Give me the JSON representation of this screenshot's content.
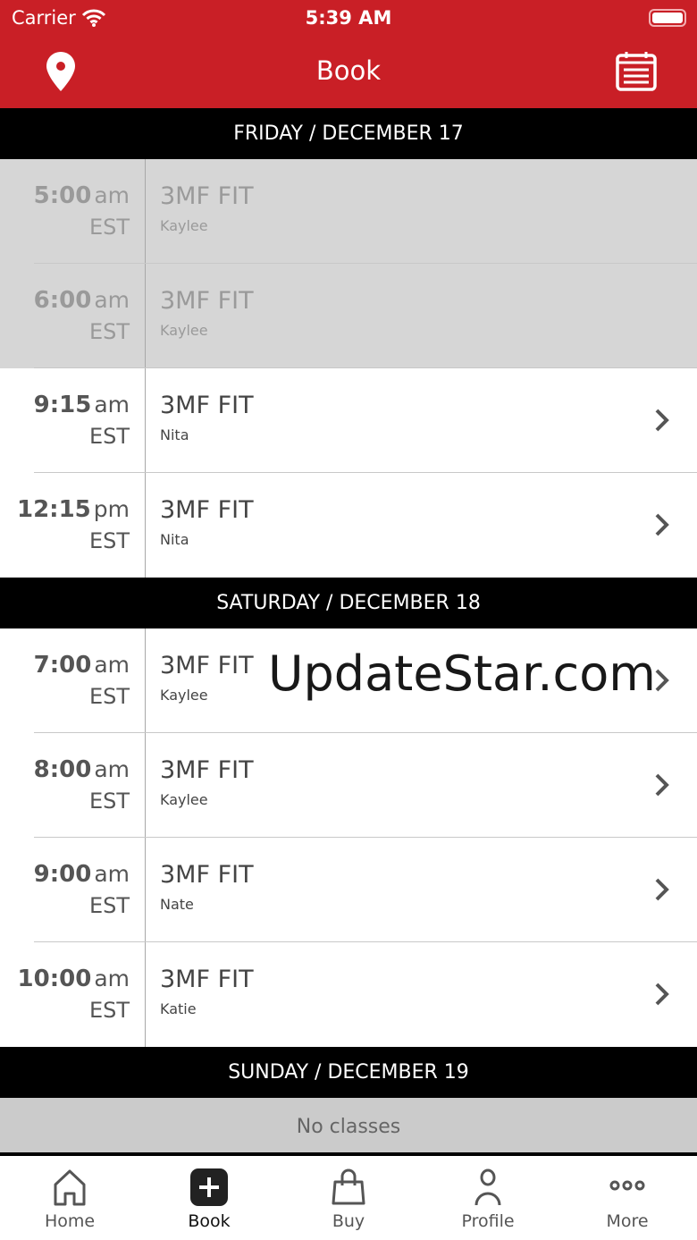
{
  "status_bar": {
    "carrier": "Carrier",
    "time": "5:39 AM"
  },
  "header": {
    "title": "Book",
    "left_icon": "location-pin-icon",
    "right_icon": "calendar-list-icon"
  },
  "days": [
    {
      "label": "FRIDAY / DECEMBER 17",
      "classes": [
        {
          "time": "5:00",
          "ampm": "am",
          "tz": "EST",
          "name": "3MF FIT",
          "instructor": "Kaylee",
          "past": true
        },
        {
          "time": "6:00",
          "ampm": "am",
          "tz": "EST",
          "name": "3MF FIT",
          "instructor": "Kaylee",
          "past": true
        },
        {
          "time": "9:15",
          "ampm": "am",
          "tz": "EST",
          "name": "3MF FIT",
          "instructor": "Nita",
          "past": false
        },
        {
          "time": "12:15",
          "ampm": "pm",
          "tz": "EST",
          "name": "3MF FIT",
          "instructor": "Nita",
          "past": false
        }
      ]
    },
    {
      "label": "SATURDAY / DECEMBER 18",
      "classes": [
        {
          "time": "7:00",
          "ampm": "am",
          "tz": "EST",
          "name": "3MF FIT",
          "instructor": "Kaylee",
          "past": false
        },
        {
          "time": "8:00",
          "ampm": "am",
          "tz": "EST",
          "name": "3MF FIT",
          "instructor": "Kaylee",
          "past": false
        },
        {
          "time": "9:00",
          "ampm": "am",
          "tz": "EST",
          "name": "3MF FIT",
          "instructor": "Nate",
          "past": false
        },
        {
          "time": "10:00",
          "ampm": "am",
          "tz": "EST",
          "name": "3MF FIT",
          "instructor": "Katie",
          "past": false
        }
      ]
    },
    {
      "label": "SUNDAY / DECEMBER 19",
      "empty_text": "No classes",
      "classes": []
    }
  ],
  "tabs": [
    {
      "label": "Home",
      "icon": "home-icon"
    },
    {
      "label": "Book",
      "icon": "plus-square-icon",
      "active": true
    },
    {
      "label": "Buy",
      "icon": "shopping-bag-icon"
    },
    {
      "label": "Profile",
      "icon": "person-icon"
    },
    {
      "label": "More",
      "icon": "more-dots-icon"
    }
  ],
  "watermark": "UpdateStar.com",
  "colors": {
    "brand": "#c91f26",
    "day_header": "#000000",
    "past_row": "#d6d6d6"
  }
}
